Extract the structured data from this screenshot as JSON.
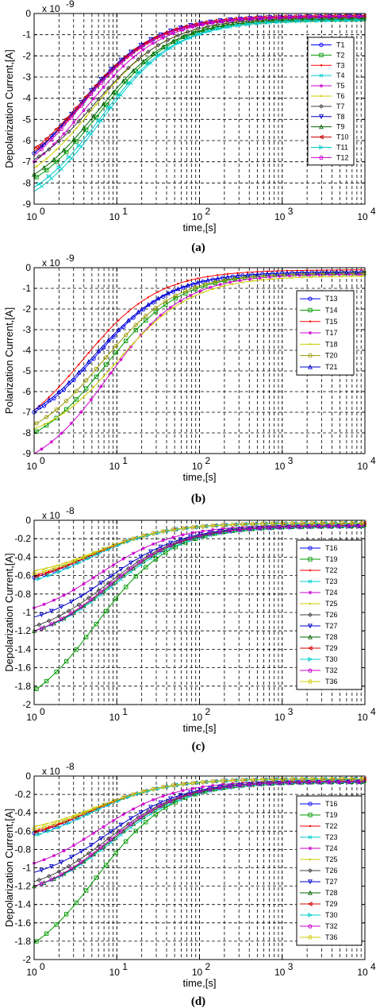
{
  "chart_data": [
    {
      "type": "line",
      "panel_label": "(a)",
      "xlabel": "time,[s]",
      "ylabel": "Depolarization Current,[A]",
      "y_multiplier": "x 10",
      "y_exponent": "-9",
      "xscale": "log",
      "xlim": [
        1,
        10000
      ],
      "ylim": [
        -9,
        0
      ],
      "yticks": [
        0,
        -1,
        -2,
        -3,
        -4,
        -5,
        -6,
        -7,
        -8,
        -9
      ],
      "ytick_labels": [
        "0",
        "-1",
        "-2",
        "-3",
        "-4",
        "-5",
        "-6",
        "-7",
        "-8",
        "-9"
      ],
      "x_major_ticks": [
        1,
        10,
        100,
        1000,
        10000
      ],
      "x_tick_mantissa": "10",
      "x_tick_exponents": [
        "0",
        "1",
        "2",
        "3",
        "4"
      ],
      "grid": true,
      "legend_position": "right",
      "series": [
        {
          "name": "T1",
          "color": "#0000ff",
          "marker": "o",
          "start": -6.6,
          "tau": 4.2,
          "offset": -0.15
        },
        {
          "name": "T2",
          "color": "#009900",
          "marker": "s",
          "start": -7.8,
          "tau": 6.5,
          "offset": -0.25
        },
        {
          "name": "T3",
          "color": "#ff0000",
          "marker": ".",
          "start": -6.5,
          "tau": 4.6,
          "offset": -0.12
        },
        {
          "name": "T4",
          "color": "#00cccc",
          "marker": "x",
          "start": -8.4,
          "tau": 6.8,
          "offset": -0.3
        },
        {
          "name": "T5",
          "color": "#cc00cc",
          "marker": "*",
          "start": -7.0,
          "tau": 4.8,
          "offset": -0.14
        },
        {
          "name": "T6",
          "color": "#cccc00",
          "marker": ".",
          "start": -7.3,
          "tau": 5.5,
          "offset": -0.2
        },
        {
          "name": "T7",
          "color": "#404040",
          "marker": "d",
          "start": -6.9,
          "tau": 5.9,
          "offset": -0.2
        },
        {
          "name": "T8",
          "color": "#0000cc",
          "marker": "v",
          "start": -6.6,
          "tau": 4.0,
          "offset": -0.12
        },
        {
          "name": "T9",
          "color": "#006600",
          "marker": "^",
          "start": -7.6,
          "tau": 6.2,
          "offset": -0.25
        },
        {
          "name": "T10",
          "color": "#cc0000",
          "marker": "<",
          "start": -6.4,
          "tau": 4.4,
          "offset": -0.1
        },
        {
          "name": "T11",
          "color": "#00cccc",
          "marker": ">",
          "start": -8.2,
          "tau": 6.6,
          "offset": -0.3
        },
        {
          "name": "T12",
          "color": "#cc00cc",
          "marker": "p",
          "start": -6.7,
          "tau": 4.3,
          "offset": -0.12
        }
      ]
    },
    {
      "type": "line",
      "panel_label": "(b)",
      "xlabel": "time,[s]",
      "ylabel": "Polarization Current,[A]",
      "y_multiplier": "x 10",
      "y_exponent": "-9",
      "xscale": "log",
      "xlim": [
        1,
        10000
      ],
      "ylim": [
        -9,
        0
      ],
      "yticks": [
        0,
        -1,
        -2,
        -3,
        -4,
        -5,
        -6,
        -7,
        -8,
        -9
      ],
      "ytick_labels": [
        "0",
        "-1",
        "-2",
        "-3",
        "-4",
        "-5",
        "-6",
        "-7",
        "-8",
        "-9"
      ],
      "x_major_ticks": [
        1,
        10,
        100,
        1000,
        10000
      ],
      "x_tick_mantissa": "10",
      "x_tick_exponents": [
        "0",
        "1",
        "2",
        "3",
        "4"
      ],
      "grid": true,
      "legend_position": "right",
      "series": [
        {
          "name": "T13",
          "color": "#0000ff",
          "marker": "o",
          "start": -7.0,
          "tau": 6.0,
          "offset": -0.2
        },
        {
          "name": "T14",
          "color": "#009900",
          "marker": "s",
          "start": -8.0,
          "tau": 7.5,
          "offset": -0.25
        },
        {
          "name": "T15",
          "color": "#ff0000",
          "marker": ".",
          "start": -6.9,
          "tau": 4.5,
          "offset": -0.1
        },
        {
          "name": "T17",
          "color": "#cc00cc",
          "marker": "*",
          "start": -9.0,
          "tau": 8.0,
          "offset": -0.3
        },
        {
          "name": "T18",
          "color": "#cccc00",
          "marker": ".",
          "start": -7.8,
          "tau": 10.0,
          "offset": -0.4
        },
        {
          "name": "T20",
          "color": "#999900",
          "marker": "o",
          "start": -7.6,
          "tau": 7.0,
          "offset": -0.25
        },
        {
          "name": "T21",
          "color": "#0000cc",
          "marker": "^",
          "start": -6.9,
          "tau": 5.8,
          "offset": -0.2
        }
      ]
    },
    {
      "type": "line",
      "panel_label": "(c)",
      "xlabel": "time,[s]",
      "ylabel": "Depolarization Current,[A]",
      "y_multiplier": "x 10",
      "y_exponent": "-8",
      "xscale": "log",
      "xlim": [
        1,
        10000
      ],
      "ylim": [
        -2,
        0
      ],
      "yticks": [
        0,
        -0.2,
        -0.4,
        -0.6,
        -0.8,
        -1,
        -1.2,
        -1.4,
        -1.6,
        -1.8,
        -2
      ],
      "ytick_labels": [
        "0",
        "-0.2",
        "-0.4",
        "-0.6",
        "-0.8",
        "-1",
        "-1.2",
        "-1.4",
        "-1.6",
        "-1.8",
        "-2"
      ],
      "x_major_ticks": [
        1,
        10,
        100,
        1000,
        10000
      ],
      "x_tick_mantissa": "10",
      "x_tick_exponents": [
        "0",
        "1",
        "2",
        "3",
        "4"
      ],
      "grid": true,
      "legend_position": "right",
      "series": [
        {
          "name": "T16",
          "color": "#0000ff",
          "marker": "o",
          "start": -0.62,
          "tau": 5.0,
          "offset": -0.03
        },
        {
          "name": "T19",
          "color": "#009900",
          "marker": "s",
          "start": -1.85,
          "tau": 6.0,
          "offset": -0.05
        },
        {
          "name": "T22",
          "color": "#ff0000",
          "marker": ".",
          "start": -0.6,
          "tau": 5.5,
          "offset": -0.03
        },
        {
          "name": "T23",
          "color": "#00cccc",
          "marker": "x",
          "start": -1.2,
          "tau": 9.0,
          "offset": -0.07
        },
        {
          "name": "T24",
          "color": "#cc00cc",
          "marker": "*",
          "start": -0.95,
          "tau": 6.5,
          "offset": -0.05
        },
        {
          "name": "T25",
          "color": "#cccc00",
          "marker": ".",
          "start": -0.55,
          "tau": 6.0,
          "offset": -0.03
        },
        {
          "name": "T26",
          "color": "#404040",
          "marker": "d",
          "start": -1.15,
          "tau": 8.0,
          "offset": -0.06
        },
        {
          "name": "T27",
          "color": "#0000cc",
          "marker": "v",
          "start": -1.05,
          "tau": 8.0,
          "offset": -0.06
        },
        {
          "name": "T28",
          "color": "#006600",
          "marker": "^",
          "start": -1.2,
          "tau": 8.5,
          "offset": -0.06
        },
        {
          "name": "T29",
          "color": "#cc0000",
          "marker": "<",
          "start": -0.62,
          "tau": 5.0,
          "offset": -0.03
        },
        {
          "name": "T30",
          "color": "#00cccc",
          "marker": ">",
          "start": -0.65,
          "tau": 5.0,
          "offset": -0.03
        },
        {
          "name": "T32",
          "color": "#cc00cc",
          "marker": "p",
          "start": -1.2,
          "tau": 8.0,
          "offset": -0.06
        },
        {
          "name": "T36",
          "color": "#cccc00",
          "marker": "h",
          "start": -0.58,
          "tau": 5.5,
          "offset": -0.03
        }
      ]
    },
    {
      "type": "line",
      "panel_label": "(d)",
      "xlabel": "time,[s]",
      "ylabel": "Depolarization Current,[A]",
      "y_multiplier": "x 10",
      "y_exponent": "-8",
      "xscale": "log",
      "xlim": [
        1,
        10000
      ],
      "ylim": [
        -2,
        0
      ],
      "yticks": [
        0,
        -0.2,
        -0.4,
        -0.6,
        -0.8,
        -1,
        -1.2,
        -1.4,
        -1.6,
        -1.8,
        -2
      ],
      "ytick_labels": [
        "0",
        "-0.2",
        "-0.4",
        "-0.6",
        "-0.8",
        "-1",
        "-1.2",
        "-1.4",
        "-1.6",
        "-1.8",
        "-2"
      ],
      "x_major_ticks": [
        1,
        10,
        100,
        1000,
        10000
      ],
      "x_tick_mantissa": "10",
      "x_tick_exponents": [
        "0",
        "1",
        "2",
        "3",
        "4"
      ],
      "grid": true,
      "legend_position": "right",
      "series": [
        {
          "name": "T16",
          "color": "#0000ff",
          "marker": "o",
          "start": -0.62,
          "tau": 5.0,
          "offset": -0.03
        },
        {
          "name": "T19",
          "color": "#009900",
          "marker": "s",
          "start": -1.82,
          "tau": 6.0,
          "offset": -0.05
        },
        {
          "name": "T22",
          "color": "#ff0000",
          "marker": ".",
          "start": -0.6,
          "tau": 5.5,
          "offset": -0.03
        },
        {
          "name": "T23",
          "color": "#00cccc",
          "marker": "x",
          "start": -1.2,
          "tau": 9.0,
          "offset": -0.07
        },
        {
          "name": "T24",
          "color": "#cc00cc",
          "marker": "*",
          "start": -0.95,
          "tau": 6.5,
          "offset": -0.05
        },
        {
          "name": "T25",
          "color": "#cccc00",
          "marker": ".",
          "start": -0.55,
          "tau": 6.0,
          "offset": -0.03
        },
        {
          "name": "T26",
          "color": "#404040",
          "marker": "d",
          "start": -1.15,
          "tau": 8.0,
          "offset": -0.06
        },
        {
          "name": "T27",
          "color": "#0000cc",
          "marker": "v",
          "start": -1.05,
          "tau": 8.0,
          "offset": -0.06
        },
        {
          "name": "T28",
          "color": "#006600",
          "marker": "^",
          "start": -1.2,
          "tau": 8.5,
          "offset": -0.06
        },
        {
          "name": "T29",
          "color": "#cc0000",
          "marker": "<",
          "start": -0.62,
          "tau": 5.0,
          "offset": -0.03
        },
        {
          "name": "T30",
          "color": "#00cccc",
          "marker": ">",
          "start": -0.65,
          "tau": 5.0,
          "offset": -0.03
        },
        {
          "name": "T32",
          "color": "#cc00cc",
          "marker": "p",
          "start": -1.2,
          "tau": 8.0,
          "offset": -0.06
        },
        {
          "name": "T36",
          "color": "#cccc00",
          "marker": "h",
          "start": -0.58,
          "tau": 5.5,
          "offset": -0.03
        }
      ]
    }
  ]
}
